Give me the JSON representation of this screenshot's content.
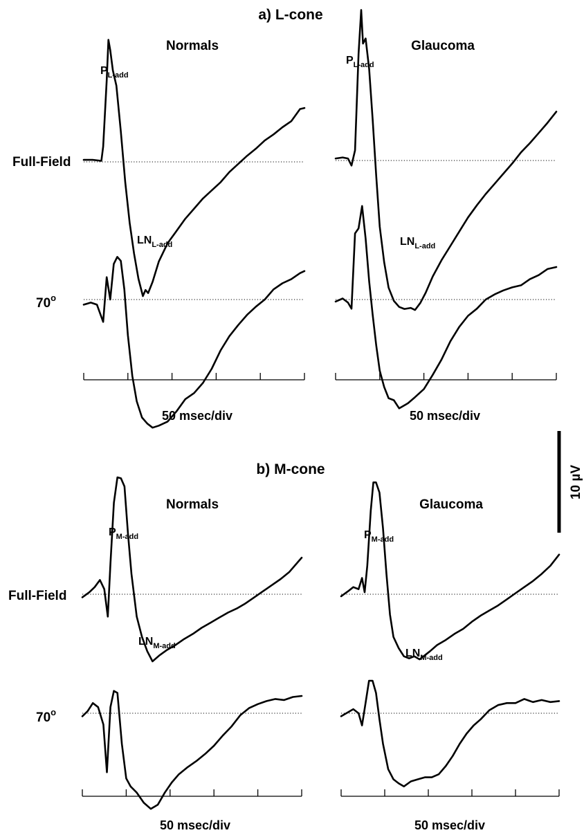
{
  "panels": {
    "a": {
      "title": "a) L-cone"
    },
    "b": {
      "title": "b) M-cone"
    }
  },
  "scale_bar": {
    "label": "10 µV",
    "value_uV": 10
  },
  "chart_data": [
    {
      "type": "line",
      "panel": "a",
      "group": "Normals",
      "title": "Normals",
      "xlabel": "50 msec/div",
      "x_unit": "ms",
      "x_per_div_ms": 50,
      "x_range_ms": [
        0,
        250
      ],
      "ticks_ms": [
        0,
        50,
        100,
        150,
        200,
        250
      ],
      "y_unit": "µV",
      "series": [
        {
          "name": "Full-Field",
          "x": [
            0,
            10,
            20,
            22,
            26,
            28,
            30,
            33,
            37,
            42,
            47,
            52,
            57,
            62,
            67,
            70,
            73,
            78,
            85,
            95,
            105,
            115,
            125,
            135,
            145,
            155,
            165,
            175,
            185,
            195,
            205,
            215,
            225,
            235,
            245,
            250
          ],
          "y": [
            0.2,
            0.2,
            0.1,
            1.5,
            8.0,
            12.0,
            11.0,
            9.0,
            7.5,
            3.0,
            -2.0,
            -6.0,
            -9.0,
            -11.5,
            -13.2,
            -12.6,
            -12.9,
            -11.8,
            -9.8,
            -8.0,
            -6.8,
            -5.6,
            -4.6,
            -3.6,
            -2.8,
            -2.0,
            -1.0,
            -0.2,
            0.6,
            1.3,
            2.1,
            2.7,
            3.4,
            4.0,
            5.2,
            5.3
          ]
        },
        {
          "name": "70°",
          "x": [
            0,
            8,
            15,
            22,
            26,
            30,
            34,
            38,
            42,
            46,
            50,
            55,
            60,
            66,
            72,
            78,
            85,
            95,
            105,
            115,
            125,
            135,
            145,
            155,
            165,
            175,
            185,
            195,
            205,
            215,
            225,
            235,
            245,
            250
          ],
          "y": [
            -0.5,
            -0.3,
            -0.5,
            -2.2,
            2.2,
            0.0,
            3.5,
            4.2,
            3.8,
            1.0,
            -3.5,
            -7.5,
            -10.0,
            -11.6,
            -12.2,
            -12.6,
            -12.4,
            -12.0,
            -11.0,
            -9.8,
            -9.2,
            -8.2,
            -6.8,
            -5.0,
            -3.6,
            -2.5,
            -1.5,
            -0.7,
            0.0,
            1.0,
            1.6,
            2.0,
            2.6,
            2.8
          ]
        }
      ]
    },
    {
      "type": "line",
      "panel": "a",
      "group": "Glaucoma",
      "title": "Glaucoma",
      "xlabel": "50 msec/div",
      "x_unit": "ms",
      "x_per_div_ms": 50,
      "x_range_ms": [
        0,
        250
      ],
      "ticks_ms": [
        0,
        50,
        100,
        150,
        200,
        250
      ],
      "y_unit": "µV",
      "series": [
        {
          "name": "Full-Field",
          "x": [
            0,
            8,
            14,
            18,
            22,
            26,
            29,
            31,
            34,
            38,
            42,
            46,
            50,
            55,
            60,
            66,
            72,
            78,
            85,
            90,
            96,
            102,
            110,
            120,
            130,
            140,
            150,
            160,
            170,
            180,
            190,
            200,
            210,
            220,
            230,
            240,
            250
          ],
          "y": [
            0.2,
            0.3,
            0.2,
            -0.5,
            1.0,
            10.5,
            14.8,
            11.5,
            12.0,
            9.0,
            4.0,
            -1.5,
            -6.5,
            -10.0,
            -12.5,
            -13.8,
            -14.4,
            -14.6,
            -14.5,
            -14.7,
            -14.0,
            -13.0,
            -11.4,
            -9.8,
            -8.4,
            -7.0,
            -5.6,
            -4.4,
            -3.3,
            -2.3,
            -1.3,
            -0.3,
            0.8,
            1.7,
            2.7,
            3.7,
            4.8
          ]
        },
        {
          "name": "70°",
          "x": [
            0,
            8,
            14,
            18,
            22,
            26,
            30,
            34,
            38,
            42,
            46,
            50,
            55,
            60,
            66,
            72,
            78,
            82,
            90,
            100,
            110,
            120,
            130,
            140,
            150,
            160,
            170,
            180,
            190,
            200,
            210,
            220,
            230,
            240,
            250
          ],
          "y": [
            -0.2,
            0.1,
            -0.3,
            -0.9,
            6.5,
            7.0,
            9.2,
            6.0,
            1.8,
            -1.5,
            -4.5,
            -7.0,
            -8.6,
            -9.7,
            -9.9,
            -10.7,
            -10.4,
            -10.2,
            -9.6,
            -8.8,
            -7.4,
            -5.9,
            -4.1,
            -2.7,
            -1.6,
            -0.9,
            0.0,
            0.5,
            0.9,
            1.2,
            1.4,
            2.0,
            2.4,
            3.0,
            3.2
          ]
        }
      ]
    },
    {
      "type": "line",
      "panel": "b",
      "group": "Normals",
      "title": "Normals",
      "xlabel": "50 msec/div",
      "x_unit": "ms",
      "x_per_div_ms": 50,
      "x_range_ms": [
        0,
        250
      ],
      "ticks_ms": [
        0,
        50,
        100,
        150,
        200,
        250
      ],
      "y_unit": "µV",
      "series": [
        {
          "name": "Full-Field",
          "x": [
            0,
            8,
            14,
            20,
            25,
            29,
            32,
            36,
            40,
            44,
            48,
            52,
            56,
            62,
            68,
            74,
            80,
            88,
            96,
            106,
            116,
            126,
            136,
            146,
            156,
            166,
            176,
            186,
            196,
            206,
            216,
            226,
            236,
            246,
            250
          ],
          "y": [
            -0.3,
            0.2,
            0.7,
            1.4,
            0.5,
            -2.2,
            3.0,
            9.0,
            11.5,
            11.4,
            10.6,
            6.0,
            2.0,
            -2.2,
            -4.2,
            -5.6,
            -6.6,
            -6.0,
            -5.5,
            -5.0,
            -4.4,
            -3.9,
            -3.3,
            -2.8,
            -2.3,
            -1.8,
            -1.4,
            -0.9,
            -0.3,
            0.3,
            0.9,
            1.5,
            2.2,
            3.2,
            3.6
          ]
        },
        {
          "name": "70°",
          "x": [
            0,
            6,
            12,
            18,
            24,
            28,
            32,
            36,
            40,
            45,
            50,
            55,
            62,
            70,
            78,
            86,
            94,
            102,
            110,
            120,
            130,
            140,
            150,
            160,
            170,
            180,
            190,
            200,
            210,
            220,
            230,
            240,
            250
          ],
          "y": [
            -0.3,
            0.2,
            1.0,
            0.6,
            -1.1,
            -5.8,
            0.6,
            2.2,
            2.0,
            -3.0,
            -6.4,
            -7.2,
            -7.8,
            -8.8,
            -9.4,
            -9.0,
            -7.8,
            -6.8,
            -6.0,
            -5.3,
            -4.7,
            -4.0,
            -3.2,
            -2.2,
            -1.3,
            -0.2,
            0.5,
            0.9,
            1.2,
            1.4,
            1.3,
            1.6,
            1.7
          ]
        }
      ]
    },
    {
      "type": "line",
      "panel": "b",
      "group": "Glaucoma",
      "title": "Glaucoma",
      "xlabel": "50 msec/div",
      "x_unit": "ms",
      "x_per_div_ms": 50,
      "x_range_ms": [
        0,
        250
      ],
      "ticks_ms": [
        0,
        50,
        100,
        150,
        200,
        250
      ],
      "y_unit": "µV",
      "series": [
        {
          "name": "Full-Field",
          "x": [
            0,
            8,
            14,
            20,
            24,
            27,
            30,
            34,
            37,
            40,
            44,
            48,
            52,
            56,
            60,
            66,
            72,
            78,
            84,
            90,
            96,
            102,
            110,
            120,
            130,
            140,
            150,
            160,
            170,
            180,
            190,
            200,
            210,
            220,
            230,
            240,
            250
          ],
          "y": [
            -0.2,
            0.3,
            0.7,
            0.5,
            1.6,
            0.2,
            2.8,
            8.2,
            11.0,
            11.0,
            10.0,
            6.5,
            2.0,
            -2.0,
            -4.2,
            -5.3,
            -6.1,
            -6.3,
            -6.1,
            -6.4,
            -6.0,
            -5.6,
            -5.0,
            -4.5,
            -3.9,
            -3.4,
            -2.7,
            -2.1,
            -1.6,
            -1.1,
            -0.5,
            0.1,
            0.7,
            1.3,
            2.0,
            2.8,
            3.9
          ]
        },
        {
          "name": "70°",
          "x": [
            0,
            8,
            14,
            20,
            24,
            28,
            32,
            36,
            40,
            44,
            48,
            54,
            60,
            66,
            72,
            80,
            88,
            96,
            104,
            112,
            120,
            128,
            136,
            144,
            152,
            160,
            170,
            180,
            190,
            200,
            210,
            220,
            230,
            240,
            250
          ],
          "y": [
            -0.3,
            0.1,
            0.4,
            0.0,
            -1.2,
            1.0,
            3.2,
            3.2,
            2.0,
            -0.6,
            -3.0,
            -5.5,
            -6.5,
            -6.9,
            -7.2,
            -6.7,
            -6.5,
            -6.3,
            -6.3,
            -6.0,
            -5.2,
            -4.2,
            -3.0,
            -2.0,
            -1.2,
            -0.6,
            0.3,
            0.8,
            1.0,
            1.0,
            1.4,
            1.1,
            1.3,
            1.1,
            1.2
          ]
        }
      ]
    }
  ],
  "annotations": {
    "a": {
      "Normals": {
        "peak_base": "P",
        "peak_sub": "L-add",
        "trough_base": "LN",
        "trough_sub": "L-add"
      },
      "Glaucoma": {
        "peak_base": "P",
        "peak_sub": "L-add",
        "trough_base": "LN",
        "trough_sub": "L-add"
      }
    },
    "b": {
      "Normals": {
        "peak_base": "P",
        "peak_sub": "M-add",
        "trough_base": "LN",
        "trough_sub": "M-add"
      },
      "Glaucoma": {
        "peak_base": "P",
        "peak_sub": "M-add",
        "trough_base": "LN",
        "trough_sub": "M-add"
      }
    }
  },
  "row_labels": {
    "full_field": "Full-Field",
    "deg70_base": "70",
    "deg70_sup": "o"
  }
}
